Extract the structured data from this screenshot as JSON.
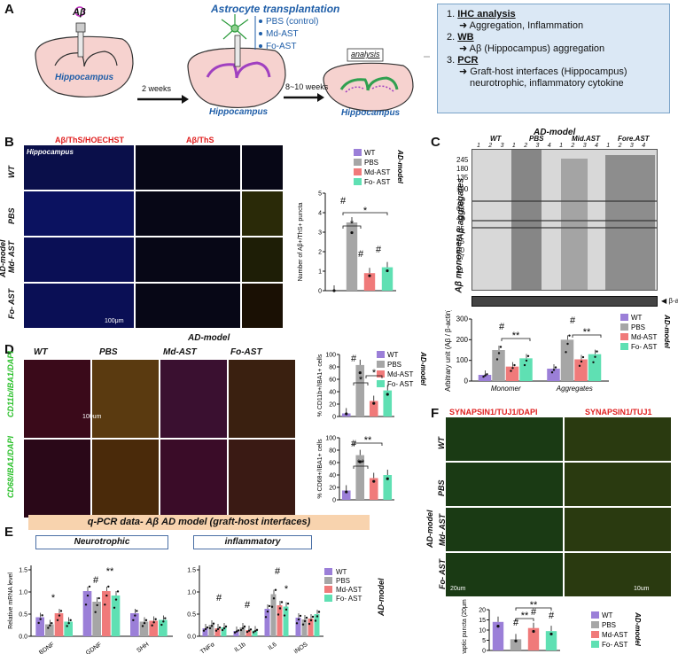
{
  "panelA": {
    "label": "A",
    "abeta": "Aβ",
    "transplant_title": "Astrocyte transplantation",
    "groups": [
      "PBS (control)",
      "Md-AST",
      "Fo-AST"
    ],
    "weeks1": "2 weeks",
    "weeks2": "8~10 weeks",
    "hippocampus": "Hippocampus",
    "analysis": "analysis",
    "list": [
      {
        "num": "1.",
        "head": "IHC analysis",
        "detail": "➜ Aggregation, Inflammation"
      },
      {
        "num": "2.",
        "head": "WB",
        "detail": "➜ Aβ (Hippocampus) aggregation"
      },
      {
        "num": "3.",
        "head": "PCR",
        "detail": "➜ Graft-host interfaces (Hippocampus)",
        "detail2": "neurotrophic, inflammatory cytokine"
      }
    ]
  },
  "panelB": {
    "label": "B",
    "col1_title": "Aβ/ThS/HOECHST",
    "col2_title": "Aβ/ThS",
    "hippocampus_tag": "Hippocampus",
    "rows": [
      "WT",
      "PBS",
      "Md- AST",
      "Fo- AST"
    ],
    "group_label": "AD-model",
    "scale": "100μm"
  },
  "panelC": {
    "label": "C",
    "group_label": "AD-model",
    "headers": [
      "WT",
      "PBS",
      "Mid.AST",
      "Fore.AST"
    ],
    "lanes": [
      "1",
      "2",
      "3",
      "1",
      "2",
      "3",
      "4",
      "1",
      "2",
      "3",
      "4",
      "1",
      "2",
      "3",
      "4"
    ],
    "mw": [
      "245",
      "180",
      "135",
      "100",
      "75",
      "63",
      "48",
      "35",
      "25",
      "20",
      "17",
      "11"
    ],
    "aggregates": "Aβ aggregates",
    "monomer": "Aβ monomer",
    "actin": "◀ β-actin"
  },
  "panelD": {
    "label": "D",
    "group_label": "AD-model",
    "cols": [
      "WT",
      "PBS",
      "Md-AST",
      "Fo-AST"
    ],
    "row1": "CD11b/IBA1/DAPI",
    "row2": "CD68/IBA1/DAPI",
    "scale": "100um"
  },
  "panelE": {
    "label": "E",
    "banner": "q-PCR data- Aβ AD model (graft-host interfaces)",
    "neuro_title": "Neurotrophic",
    "inflam_title": "inflammatory",
    "group_label": "AD-model"
  },
  "panelF": {
    "label": "F",
    "col1_title": "SYNAPSIN1/TUJ1/DAPI",
    "col2_title": "SYNAPSIN1/TUJ1",
    "rows": [
      "WT",
      "PBS",
      "Md- AST",
      "Fo- AST"
    ],
    "group_label": "AD-model",
    "scale1": "20um",
    "scale2": "10um"
  },
  "legend": {
    "items": [
      "WT",
      "PBS",
      "Md-AST",
      "Fo- AST"
    ],
    "colors": [
      "#9b7fd8",
      "#a6a6a6",
      "#f07a7a",
      "#5fe0b3"
    ]
  },
  "chart_data": [
    {
      "type": "bar",
      "id": "B",
      "ylabel": "Number of Aβ+/ThS+ puncta",
      "categories": [
        "WT",
        "PBS",
        "Md-AST",
        "Fo- AST"
      ],
      "values": [
        0,
        3.5,
        0.9,
        1.2
      ],
      "ylim": [
        0,
        5
      ],
      "yticks": [
        "0",
        "1",
        "2",
        "3",
        "4",
        "5"
      ]
    },
    {
      "type": "bar",
      "id": "C",
      "ylabel": "Arbitrary unit (Aβ / β-actin)",
      "categories": [
        "Monomer",
        "Aggregates"
      ],
      "series": [
        {
          "name": "WT",
          "values": [
            30,
            60
          ]
        },
        {
          "name": "PBS",
          "values": [
            150,
            200
          ]
        },
        {
          "name": "Md-AST",
          "values": [
            70,
            105
          ]
        },
        {
          "name": "Fo- AST",
          "values": [
            110,
            130
          ]
        }
      ],
      "ylim": [
        0,
        300
      ],
      "yticks": [
        "0",
        "100",
        "200",
        "300"
      ]
    },
    {
      "type": "bar",
      "id": "D1",
      "ylabel": "% CD11b+/IBA1+ cells",
      "categories": [
        "WT",
        "PBS",
        "Md-AST",
        "Fo- AST"
      ],
      "values": [
        5,
        83,
        25,
        42
      ],
      "ylim": [
        0,
        100
      ],
      "yticks": [
        "0",
        "20",
        "40",
        "60",
        "80",
        "100"
      ]
    },
    {
      "type": "bar",
      "id": "D2",
      "ylabel": "% CD68+/IBA1+ cells",
      "categories": [
        "WT",
        "PBS",
        "Md-AST",
        "Fo- AST"
      ],
      "values": [
        15,
        72,
        35,
        40
      ],
      "ylim": [
        0,
        100
      ],
      "yticks": [
        "0",
        "20",
        "40",
        "60",
        "80",
        "100"
      ]
    },
    {
      "type": "bar",
      "id": "E1",
      "ylabel": "Relative mRNA level",
      "categories": [
        "BDNF",
        "GDNF",
        "SHH"
      ],
      "series": [
        {
          "name": "WT",
          "values": [
            0.43,
            1.02,
            0.52
          ]
        },
        {
          "name": "PBS",
          "values": [
            0.27,
            0.78,
            0.33
          ]
        },
        {
          "name": "Md-AST",
          "values": [
            0.52,
            1.02,
            0.35
          ]
        },
        {
          "name": "Fo- AST",
          "values": [
            0.33,
            0.92,
            0.37
          ]
        }
      ],
      "ylim": [
        0,
        1.6
      ],
      "yticks": [
        "0.0",
        "0.5",
        "1.0",
        "1.5"
      ]
    },
    {
      "type": "bar",
      "id": "E2",
      "categories": [
        "TNFα",
        "IL1b",
        "IL6",
        "iNOS"
      ],
      "series": [
        {
          "name": "WT",
          "values": [
            0.18,
            0.12,
            0.62,
            0.42
          ]
        },
        {
          "name": "PBS",
          "values": [
            0.26,
            0.2,
            0.95,
            0.38
          ]
        },
        {
          "name": "Md-AST",
          "values": [
            0.18,
            0.14,
            0.7,
            0.4
          ]
        },
        {
          "name": "Fo- AST",
          "values": [
            0.2,
            0.13,
            0.67,
            0.5
          ]
        }
      ],
      "ylim": [
        0,
        1.6
      ],
      "yticks": [
        "0.0",
        "0.5",
        "1.0",
        "1.5"
      ]
    },
    {
      "type": "bar",
      "id": "F",
      "ylabel": "Synaptic puncta (20μm)",
      "categories": [
        "WT",
        "PBS",
        "Md-AST",
        "Fo- AST"
      ],
      "values": [
        14,
        5.5,
        11,
        9.5
      ],
      "ylim": [
        0,
        20
      ],
      "yticks": [
        "0",
        "5",
        "10",
        "15",
        "20"
      ]
    }
  ]
}
